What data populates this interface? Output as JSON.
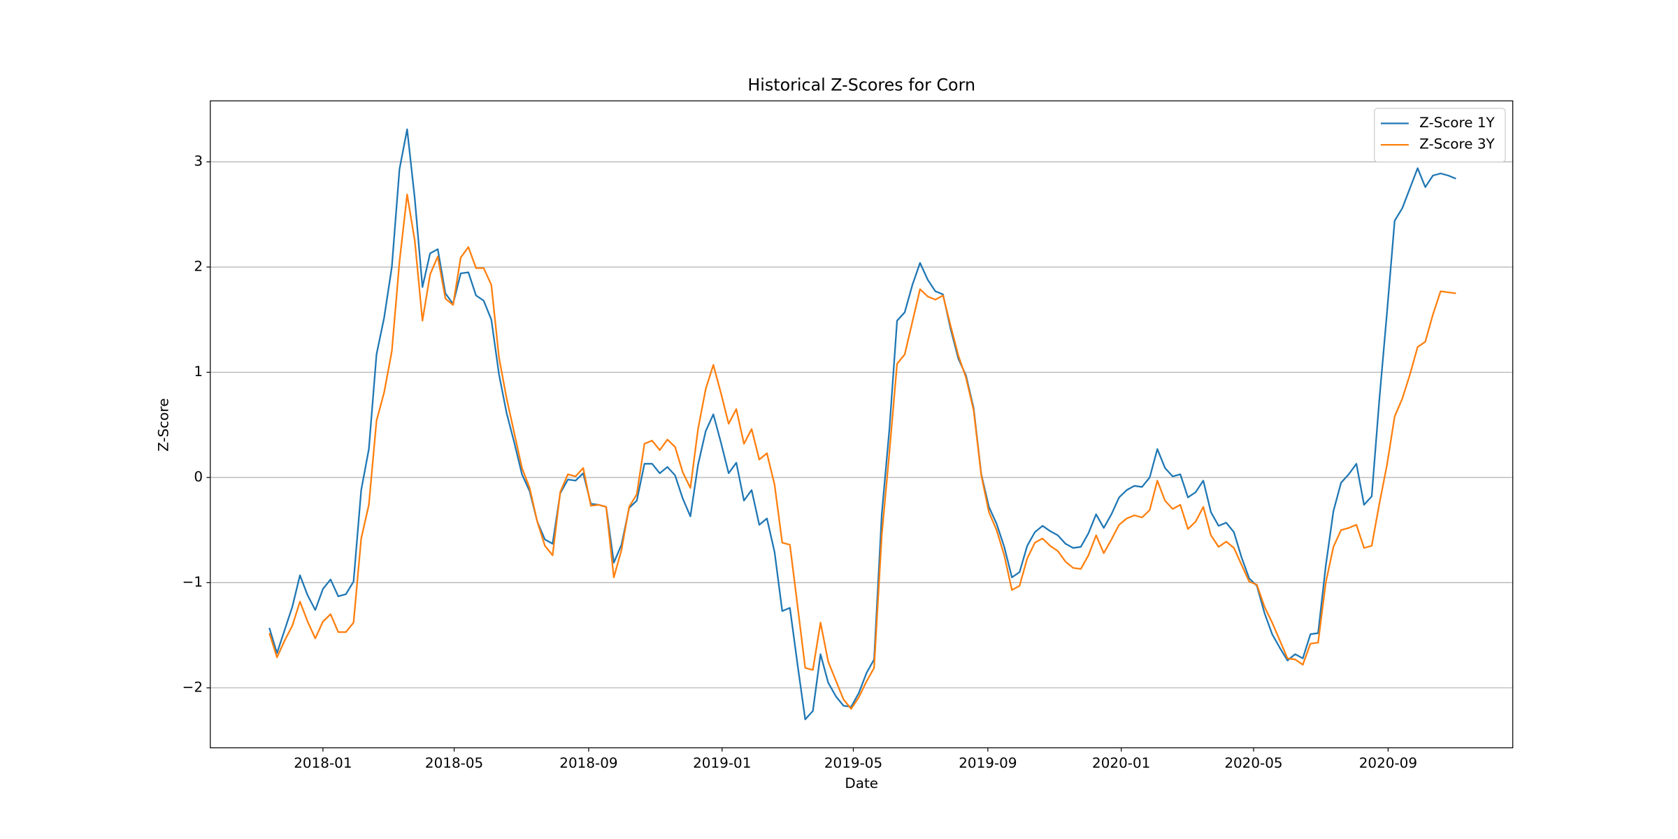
{
  "chart_data": {
    "type": "line",
    "title": "Historical Z-Scores for Corn",
    "xlabel": "Date",
    "ylabel": "Z-Score",
    "x": [
      "2017-11-13",
      "2017-11-20",
      "2017-11-27",
      "2017-12-04",
      "2017-12-11",
      "2017-12-18",
      "2017-12-25",
      "2018-01-01",
      "2018-01-08",
      "2018-01-15",
      "2018-01-22",
      "2018-01-29",
      "2018-02-05",
      "2018-02-12",
      "2018-02-19",
      "2018-02-26",
      "2018-03-05",
      "2018-03-12",
      "2018-03-19",
      "2018-03-26",
      "2018-04-02",
      "2018-04-09",
      "2018-04-16",
      "2018-04-23",
      "2018-04-30",
      "2018-05-07",
      "2018-05-14",
      "2018-05-21",
      "2018-05-28",
      "2018-06-04",
      "2018-06-11",
      "2018-06-18",
      "2018-06-25",
      "2018-07-02",
      "2018-07-09",
      "2018-07-16",
      "2018-07-23",
      "2018-07-30",
      "2018-08-06",
      "2018-08-13",
      "2018-08-20",
      "2018-08-27",
      "2018-09-03",
      "2018-09-10",
      "2018-09-17",
      "2018-09-24",
      "2018-10-01",
      "2018-10-08",
      "2018-10-15",
      "2018-10-22",
      "2018-10-29",
      "2018-11-05",
      "2018-11-12",
      "2018-11-19",
      "2018-11-26",
      "2018-12-03",
      "2018-12-10",
      "2018-12-17",
      "2018-12-24",
      "2018-12-31",
      "2019-01-07",
      "2019-01-14",
      "2019-01-21",
      "2019-01-28",
      "2019-02-04",
      "2019-02-11",
      "2019-02-18",
      "2019-02-25",
      "2019-03-04",
      "2019-03-11",
      "2019-03-18",
      "2019-03-25",
      "2019-04-01",
      "2019-04-08",
      "2019-04-15",
      "2019-04-22",
      "2019-04-29",
      "2019-05-06",
      "2019-05-13",
      "2019-05-20",
      "2019-05-27",
      "2019-06-03",
      "2019-06-10",
      "2019-06-17",
      "2019-06-24",
      "2019-07-01",
      "2019-07-08",
      "2019-07-15",
      "2019-07-22",
      "2019-07-29",
      "2019-08-05",
      "2019-08-12",
      "2019-08-19",
      "2019-08-26",
      "2019-09-02",
      "2019-09-09",
      "2019-09-16",
      "2019-09-23",
      "2019-09-30",
      "2019-10-07",
      "2019-10-14",
      "2019-10-21",
      "2019-10-28",
      "2019-11-04",
      "2019-11-11",
      "2019-11-18",
      "2019-11-25",
      "2019-12-02",
      "2019-12-09",
      "2019-12-16",
      "2019-12-23",
      "2019-12-30",
      "2020-01-06",
      "2020-01-13",
      "2020-01-20",
      "2020-01-27",
      "2020-02-03",
      "2020-02-10",
      "2020-02-17",
      "2020-02-24",
      "2020-03-02",
      "2020-03-09",
      "2020-03-16",
      "2020-03-23",
      "2020-03-30",
      "2020-04-06",
      "2020-04-13",
      "2020-04-20",
      "2020-04-27",
      "2020-05-04",
      "2020-05-11",
      "2020-05-18",
      "2020-05-25",
      "2020-06-01",
      "2020-06-08",
      "2020-06-15",
      "2020-06-22",
      "2020-06-29",
      "2020-07-06",
      "2020-07-13",
      "2020-07-20",
      "2020-07-27",
      "2020-08-03",
      "2020-08-10",
      "2020-08-17",
      "2020-08-24",
      "2020-08-31",
      "2020-09-07",
      "2020-09-14",
      "2020-09-21",
      "2020-09-28",
      "2020-10-05",
      "2020-10-12",
      "2020-10-19",
      "2020-10-26",
      "2020-11-02"
    ],
    "series": [
      {
        "name": "Z-Score 1Y",
        "color": "#1f77b4",
        "values": [
          -1.43,
          -1.67,
          -1.45,
          -1.23,
          -0.93,
          -1.12,
          -1.26,
          -1.06,
          -0.97,
          -1.13,
          -1.11,
          -0.99,
          -0.12,
          0.27,
          1.17,
          1.52,
          2.0,
          2.93,
          3.31,
          2.65,
          1.81,
          2.13,
          2.17,
          1.75,
          1.65,
          1.94,
          1.95,
          1.73,
          1.68,
          1.5,
          0.98,
          0.61,
          0.33,
          0.03,
          -0.13,
          -0.42,
          -0.59,
          -0.63,
          -0.15,
          -0.02,
          -0.03,
          0.04,
          -0.25,
          -0.26,
          -0.28,
          -0.81,
          -0.64,
          -0.29,
          -0.22,
          0.13,
          0.13,
          0.04,
          0.1,
          0.02,
          -0.2,
          -0.37,
          0.12,
          0.44,
          0.6,
          0.33,
          0.04,
          0.14,
          -0.22,
          -0.12,
          -0.45,
          -0.39,
          -0.71,
          -1.27,
          -1.24,
          -1.78,
          -2.3,
          -2.22,
          -1.68,
          -1.95,
          -2.08,
          -2.17,
          -2.18,
          -2.05,
          -1.86,
          -1.73,
          -0.35,
          0.46,
          1.49,
          1.57,
          1.83,
          2.04,
          1.88,
          1.77,
          1.74,
          1.41,
          1.13,
          0.97,
          0.66,
          0.03,
          -0.28,
          -0.44,
          -0.66,
          -0.95,
          -0.9,
          -0.65,
          -0.52,
          -0.46,
          -0.51,
          -0.55,
          -0.63,
          -0.67,
          -0.66,
          -0.53,
          -0.35,
          -0.48,
          -0.35,
          -0.19,
          -0.12,
          -0.08,
          -0.09,
          0.0,
          0.27,
          0.09,
          0.01,
          0.03,
          -0.19,
          -0.14,
          -0.03,
          -0.33,
          -0.46,
          -0.43,
          -0.52,
          -0.76,
          -0.96,
          -1.03,
          -1.29,
          -1.49,
          -1.62,
          -1.74,
          -1.68,
          -1.72,
          -1.49,
          -1.48,
          -0.84,
          -0.32,
          -0.05,
          0.03,
          0.13,
          -0.26,
          -0.18,
          0.74,
          1.57,
          2.44,
          2.56,
          2.75,
          2.94,
          2.76,
          2.87,
          2.89,
          2.87,
          2.84
        ]
      },
      {
        "name": "Z-Score 3Y",
        "color": "#ff7f0e",
        "values": [
          -1.48,
          -1.71,
          -1.55,
          -1.41,
          -1.18,
          -1.37,
          -1.53,
          -1.37,
          -1.3,
          -1.47,
          -1.47,
          -1.38,
          -0.58,
          -0.26,
          0.54,
          0.81,
          1.2,
          2.05,
          2.69,
          2.25,
          1.49,
          1.93,
          2.1,
          1.7,
          1.64,
          2.09,
          2.19,
          1.99,
          1.99,
          1.83,
          1.14,
          0.75,
          0.42,
          0.09,
          -0.1,
          -0.42,
          -0.65,
          -0.74,
          -0.14,
          0.03,
          0.01,
          0.09,
          -0.27,
          -0.26,
          -0.28,
          -0.95,
          -0.69,
          -0.28,
          -0.16,
          0.32,
          0.35,
          0.26,
          0.36,
          0.29,
          0.05,
          -0.1,
          0.46,
          0.84,
          1.07,
          0.8,
          0.51,
          0.65,
          0.32,
          0.46,
          0.17,
          0.23,
          -0.07,
          -0.62,
          -0.64,
          -1.22,
          -1.81,
          -1.83,
          -1.38,
          -1.75,
          -1.93,
          -2.11,
          -2.2,
          -2.09,
          -1.94,
          -1.81,
          -0.55,
          0.24,
          1.08,
          1.17,
          1.48,
          1.79,
          1.72,
          1.69,
          1.73,
          1.44,
          1.16,
          0.95,
          0.64,
          0.02,
          -0.33,
          -0.5,
          -0.74,
          -1.07,
          -1.03,
          -0.77,
          -0.62,
          -0.58,
          -0.65,
          -0.7,
          -0.8,
          -0.86,
          -0.87,
          -0.74,
          -0.55,
          -0.72,
          -0.59,
          -0.45,
          -0.39,
          -0.36,
          -0.38,
          -0.31,
          -0.03,
          -0.22,
          -0.3,
          -0.26,
          -0.49,
          -0.42,
          -0.28,
          -0.55,
          -0.66,
          -0.61,
          -0.67,
          -0.83,
          -0.99,
          -1.02,
          -1.23,
          -1.38,
          -1.55,
          -1.72,
          -1.73,
          -1.78,
          -1.58,
          -1.57,
          -1.0,
          -0.66,
          -0.5,
          -0.48,
          -0.45,
          -0.67,
          -0.65,
          -0.25,
          0.12,
          0.58,
          0.75,
          0.98,
          1.24,
          1.29,
          1.55,
          1.77,
          1.76,
          1.75
        ]
      }
    ],
    "xlim": [
      "2017-09-20",
      "2020-12-24"
    ],
    "xticks": [
      {
        "value": "2018-01-01",
        "label": "2018-01"
      },
      {
        "value": "2018-05-01",
        "label": "2018-05"
      },
      {
        "value": "2018-09-01",
        "label": "2018-09"
      },
      {
        "value": "2019-01-01",
        "label": "2019-01"
      },
      {
        "value": "2019-05-01",
        "label": "2019-05"
      },
      {
        "value": "2019-09-01",
        "label": "2019-09"
      },
      {
        "value": "2020-01-01",
        "label": "2020-01"
      },
      {
        "value": "2020-05-01",
        "label": "2020-05"
      },
      {
        "value": "2020-09-01",
        "label": "2020-09"
      }
    ],
    "ylim": [
      -2.57,
      3.58
    ],
    "yticks": [
      {
        "value": -2,
        "label": "−2"
      },
      {
        "value": -1,
        "label": "−1"
      },
      0,
      1,
      2,
      3
    ],
    "grid": "y",
    "legend": "upper right"
  }
}
